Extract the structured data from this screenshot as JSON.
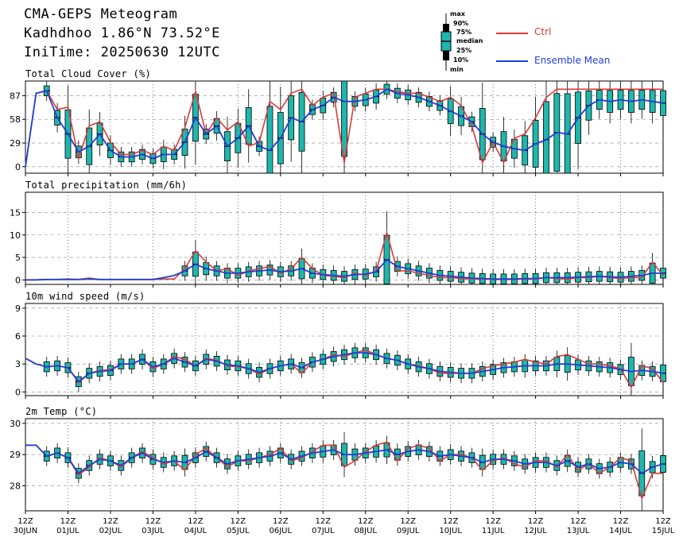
{
  "header": {
    "title": "CMA-GEPS Meteogram",
    "location": "Kadhdhoo 1.86°N 73.52°E",
    "init_time": "IniTime: 20250630 12UTC"
  },
  "legend": {
    "ctrl_label": "Ctrl",
    "mean_label": "Ensemble Mean",
    "ctrl_color": "#d93a3a",
    "mean_color": "#1f3fd6",
    "box_color": "#1fb7ad",
    "box_key": [
      "max",
      "90%",
      "75%",
      "median",
      "25%",
      "10%",
      "min"
    ]
  },
  "x_axis": {
    "tick_top": [
      "12Z",
      "12Z",
      "12Z",
      "12Z",
      "12Z",
      "12Z",
      "12Z",
      "12Z",
      "12Z",
      "12Z",
      "12Z",
      "12Z",
      "12Z",
      "12Z",
      "12Z",
      "12Z"
    ],
    "tick_bottom": [
      "30JUN",
      "01JUL",
      "02JUL",
      "03JUL",
      "04JUL",
      "05JUL",
      "06JUL",
      "07JUL",
      "08JUL",
      "09JUL",
      "10JUL",
      "11JUL",
      "12JUL",
      "13JUL",
      "14JUL",
      "15JUL"
    ]
  },
  "chart_data": [
    {
      "type": "line",
      "title": "Total Cloud Cover (%)",
      "yticks": [
        "0",
        "29",
        "58",
        "87"
      ],
      "ylim": [
        -8,
        105
      ],
      "x_unit": "6-hourly steps from 2025-06-30 12UTC",
      "x": [
        0,
        1,
        2,
        3,
        4,
        5,
        6,
        7,
        8,
        9,
        10,
        11,
        12,
        13,
        14,
        15,
        16,
        17,
        18,
        19,
        20,
        21,
        22,
        23,
        24,
        25,
        26,
        27,
        28,
        29,
        30,
        31,
        32,
        33,
        34,
        35,
        36,
        37,
        38,
        39,
        40,
        41,
        42,
        43,
        44,
        45,
        46,
        47,
        48,
        49,
        50,
        51,
        52,
        53,
        54,
        55,
        56,
        57,
        58,
        59,
        60
      ],
      "series": [
        {
          "name": "Ctrl",
          "values": [
            0,
            90,
            93,
            70,
            73,
            10,
            50,
            55,
            30,
            15,
            15,
            20,
            15,
            25,
            20,
            48,
            92,
            40,
            60,
            45,
            55,
            25,
            30,
            80,
            70,
            90,
            95,
            75,
            85,
            90,
            5,
            85,
            90,
            95,
            95,
            92,
            90,
            90,
            85,
            80,
            85,
            75,
            50,
            5,
            30,
            5,
            35,
            40,
            60,
            85,
            95,
            95,
            95,
            95,
            95,
            95,
            95,
            95,
            95,
            95,
            95
          ]
        },
        {
          "name": "Ensemble Mean",
          "values": [
            0,
            90,
            93,
            60,
            40,
            18,
            25,
            40,
            20,
            12,
            12,
            15,
            10,
            15,
            15,
            30,
            60,
            40,
            50,
            25,
            35,
            50,
            25,
            20,
            35,
            60,
            55,
            70,
            75,
            85,
            80,
            80,
            82,
            86,
            95,
            90,
            88,
            85,
            80,
            75,
            68,
            62,
            55,
            40,
            30,
            25,
            22,
            20,
            28,
            33,
            42,
            40,
            60,
            75,
            82,
            80,
            82,
            80,
            82,
            80,
            78
          ]
        }
      ]
    },
    {
      "type": "line",
      "title": "Total precipitation (mm/6h)",
      "yticks": [
        "0",
        "5",
        "10",
        "15"
      ],
      "ylim": [
        -1,
        19.5
      ],
      "x": [
        0,
        1,
        2,
        3,
        4,
        5,
        6,
        7,
        8,
        9,
        10,
        11,
        12,
        13,
        14,
        15,
        16,
        17,
        18,
        19,
        20,
        21,
        22,
        23,
        24,
        25,
        26,
        27,
        28,
        29,
        30,
        31,
        32,
        33,
        34,
        35,
        36,
        37,
        38,
        39,
        40,
        41,
        42,
        43,
        44,
        45,
        46,
        47,
        48,
        49,
        50,
        51,
        52,
        53,
        54,
        55,
        56,
        57,
        58,
        59,
        60
      ],
      "series": [
        {
          "name": "Ctrl",
          "values": [
            0,
            0,
            0.1,
            0.1,
            0.2,
            0.1,
            0.4,
            0.1,
            0.1,
            0.1,
            0.1,
            0.1,
            0.1,
            0.2,
            0.2,
            2.5,
            6.5,
            4.0,
            2.0,
            2.5,
            1.0,
            2.0,
            2.5,
            3.0,
            1.5,
            2.5,
            5.0,
            2.5,
            1.0,
            0.8,
            0.5,
            1.5,
            1.0,
            2.0,
            10.5,
            2.0,
            2.0,
            1.5,
            1.0,
            0.5,
            0.5,
            0.3,
            0.2,
            0.2,
            0.1,
            0.1,
            0.1,
            0.2,
            0.2,
            0.5,
            0.3,
            0.2,
            0.5,
            0.5,
            0.8,
            0.5,
            0.3,
            0.5,
            0.5,
            4.0,
            1.0
          ]
        },
        {
          "name": "Ensemble Mean",
          "values": [
            0,
            0,
            0.1,
            0.1,
            0.1,
            0.1,
            0.2,
            0.1,
            0.1,
            0.1,
            0.1,
            0.1,
            0.1,
            0.5,
            1.0,
            2.0,
            3.5,
            2.5,
            2.0,
            1.5,
            1.5,
            1.8,
            2.0,
            2.2,
            1.8,
            2.0,
            2.5,
            1.5,
            1.2,
            1.0,
            0.8,
            1.2,
            1.3,
            1.8,
            4.5,
            3.0,
            2.5,
            2.0,
            1.5,
            1.0,
            0.8,
            0.6,
            0.4,
            0.3,
            0.2,
            0.2,
            0.2,
            0.3,
            0.3,
            0.5,
            0.5,
            0.5,
            0.6,
            0.7,
            0.8,
            0.7,
            0.6,
            0.8,
            1.0,
            1.5,
            1.5
          ]
        }
      ]
    },
    {
      "type": "line",
      "title": "10m wind speed (m/s)",
      "yticks": [
        "0",
        "3",
        "6",
        "9"
      ],
      "ylim": [
        -0.4,
        9.5
      ],
      "x": [
        0,
        1,
        2,
        3,
        4,
        5,
        6,
        7,
        8,
        9,
        10,
        11,
        12,
        13,
        14,
        15,
        16,
        17,
        18,
        19,
        20,
        21,
        22,
        23,
        24,
        25,
        26,
        27,
        28,
        29,
        30,
        31,
        32,
        33,
        34,
        35,
        36,
        37,
        38,
        39,
        40,
        41,
        42,
        43,
        44,
        45,
        46,
        47,
        48,
        49,
        50,
        51,
        52,
        53,
        54,
        55,
        56,
        57,
        58,
        59,
        60
      ],
      "series": [
        {
          "name": "Ctrl",
          "values": [
            3.6,
            3.0,
            2.7,
            2.8,
            2.6,
            1.0,
            2.0,
            2.3,
            2.4,
            3.0,
            3.0,
            3.5,
            2.5,
            3.0,
            3.8,
            3.5,
            2.8,
            3.6,
            3.4,
            2.8,
            2.7,
            2.5,
            1.9,
            2.5,
            2.8,
            3.0,
            2.0,
            3.2,
            3.5,
            4.0,
            3.8,
            4.2,
            4.5,
            4.0,
            3.6,
            3.4,
            3.0,
            2.8,
            2.5,
            2.0,
            2.0,
            2.0,
            2.0,
            2.5,
            2.8,
            3.0,
            3.2,
            3.5,
            3.2,
            3.0,
            3.8,
            4.0,
            3.5,
            3.0,
            3.0,
            2.8,
            2.5,
            0.5,
            2.8,
            2.5,
            1.0
          ]
        },
        {
          "name": "Ensemble Mean",
          "values": [
            3.6,
            3.0,
            2.7,
            2.8,
            2.6,
            1.1,
            2.0,
            2.2,
            2.3,
            3.0,
            3.0,
            3.5,
            2.7,
            3.0,
            3.6,
            3.2,
            2.8,
            3.5,
            3.3,
            2.9,
            2.8,
            2.5,
            2.1,
            2.5,
            2.8,
            3.0,
            2.6,
            3.2,
            3.5,
            3.8,
            4.0,
            4.2,
            4.2,
            4.0,
            3.6,
            3.4,
            3.0,
            2.7,
            2.5,
            2.2,
            2.1,
            2.0,
            2.0,
            2.2,
            2.4,
            2.6,
            2.7,
            2.8,
            2.8,
            2.8,
            3.0,
            3.0,
            2.9,
            2.8,
            2.7,
            2.6,
            2.4,
            2.2,
            2.3,
            2.2,
            2.0
          ]
        }
      ]
    },
    {
      "type": "line",
      "title": "2m Temp (°C)",
      "yticks": [
        "28",
        "29",
        "30"
      ],
      "ylim": [
        27.2,
        30.15
      ],
      "x": [
        0,
        1,
        2,
        3,
        4,
        5,
        6,
        7,
        8,
        9,
        10,
        11,
        12,
        13,
        14,
        15,
        16,
        17,
        18,
        19,
        20,
        21,
        22,
        23,
        24,
        25,
        26,
        27,
        28,
        29,
        30,
        31,
        32,
        33,
        34,
        35,
        36,
        37,
        38,
        39,
        40,
        41,
        42,
        43,
        44,
        45,
        46,
        47,
        48,
        49,
        50,
        51,
        52,
        53,
        54,
        55,
        56,
        57,
        58,
        59,
        60
      ],
      "series": [
        {
          "name": "Ctrl",
          "values": [
            29.3,
            29.3,
            28.95,
            29.05,
            28.9,
            28.35,
            28.6,
            28.9,
            28.8,
            28.6,
            28.9,
            29.1,
            28.9,
            28.7,
            28.8,
            28.5,
            29.0,
            29.2,
            28.9,
            28.6,
            28.8,
            28.8,
            28.9,
            29.0,
            29.2,
            28.8,
            28.9,
            29.1,
            29.3,
            29.3,
            28.6,
            28.8,
            29.1,
            29.3,
            29.4,
            28.8,
            29.2,
            29.3,
            29.2,
            28.8,
            29.0,
            29.0,
            28.9,
            28.5,
            28.8,
            28.9,
            28.7,
            28.6,
            28.8,
            28.8,
            28.6,
            29.0,
            28.5,
            28.7,
            28.4,
            28.6,
            28.9,
            28.8,
            27.6,
            28.4,
            28.4
          ]
        },
        {
          "name": "Ensemble Mean",
          "values": [
            29.3,
            29.3,
            28.95,
            29.05,
            28.9,
            28.4,
            28.65,
            28.85,
            28.8,
            28.65,
            28.9,
            29.05,
            28.85,
            28.75,
            28.8,
            28.75,
            28.9,
            29.1,
            28.9,
            28.7,
            28.8,
            28.85,
            28.9,
            28.95,
            29.05,
            28.85,
            28.95,
            29.05,
            29.1,
            29.15,
            29.0,
            29.0,
            29.05,
            29.1,
            29.15,
            29.0,
            29.1,
            29.15,
            29.1,
            28.95,
            29.0,
            28.95,
            28.9,
            28.75,
            28.85,
            28.85,
            28.8,
            28.7,
            28.75,
            28.75,
            28.65,
            28.8,
            28.6,
            28.7,
            28.55,
            28.6,
            28.75,
            28.7,
            28.4,
            28.6,
            28.7
          ]
        }
      ]
    }
  ]
}
